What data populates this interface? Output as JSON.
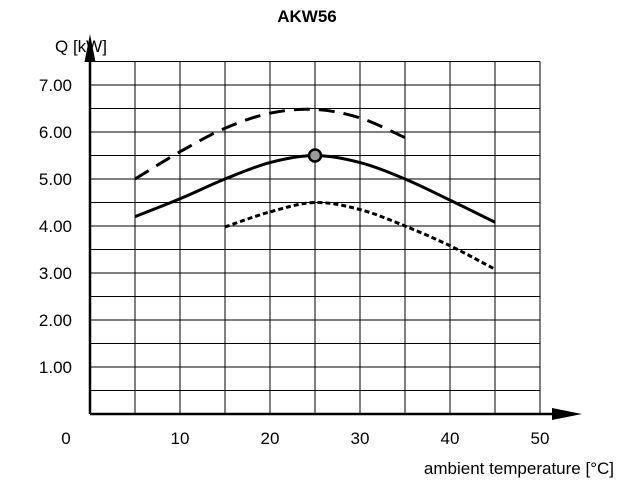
{
  "chart_data": {
    "type": "line",
    "title": "AKW56",
    "ylabel": "Q [kW]",
    "xlabel": "ambient temperature [°C]",
    "xlim": [
      0,
      55
    ],
    "ylim": [
      0,
      8
    ],
    "grid": true,
    "x_ticks": [
      "0",
      "10",
      "20",
      "30",
      "40",
      "50"
    ],
    "y_ticks": [
      "1.00",
      "2.00",
      "3.00",
      "4.00",
      "5.00",
      "6.00",
      "7.00"
    ],
    "series": [
      {
        "style": "dashed",
        "x": [
          5,
          10,
          15,
          20,
          25,
          30,
          35
        ],
        "y": [
          5.0,
          5.58,
          6.08,
          6.4,
          6.48,
          6.3,
          5.88
        ]
      },
      {
        "style": "solid",
        "x": [
          5,
          10,
          15,
          20,
          25,
          30,
          35,
          40,
          45
        ],
        "y": [
          4.2,
          4.58,
          5.0,
          5.35,
          5.5,
          5.35,
          5.0,
          4.55,
          4.08
        ]
      },
      {
        "style": "dotted",
        "x": [
          15,
          20,
          25,
          30,
          35,
          40,
          45
        ],
        "y": [
          3.98,
          4.3,
          4.5,
          4.35,
          4.0,
          3.58,
          3.08
        ]
      }
    ],
    "marker": {
      "x": 25,
      "y": 5.5,
      "color": "#999999"
    }
  }
}
